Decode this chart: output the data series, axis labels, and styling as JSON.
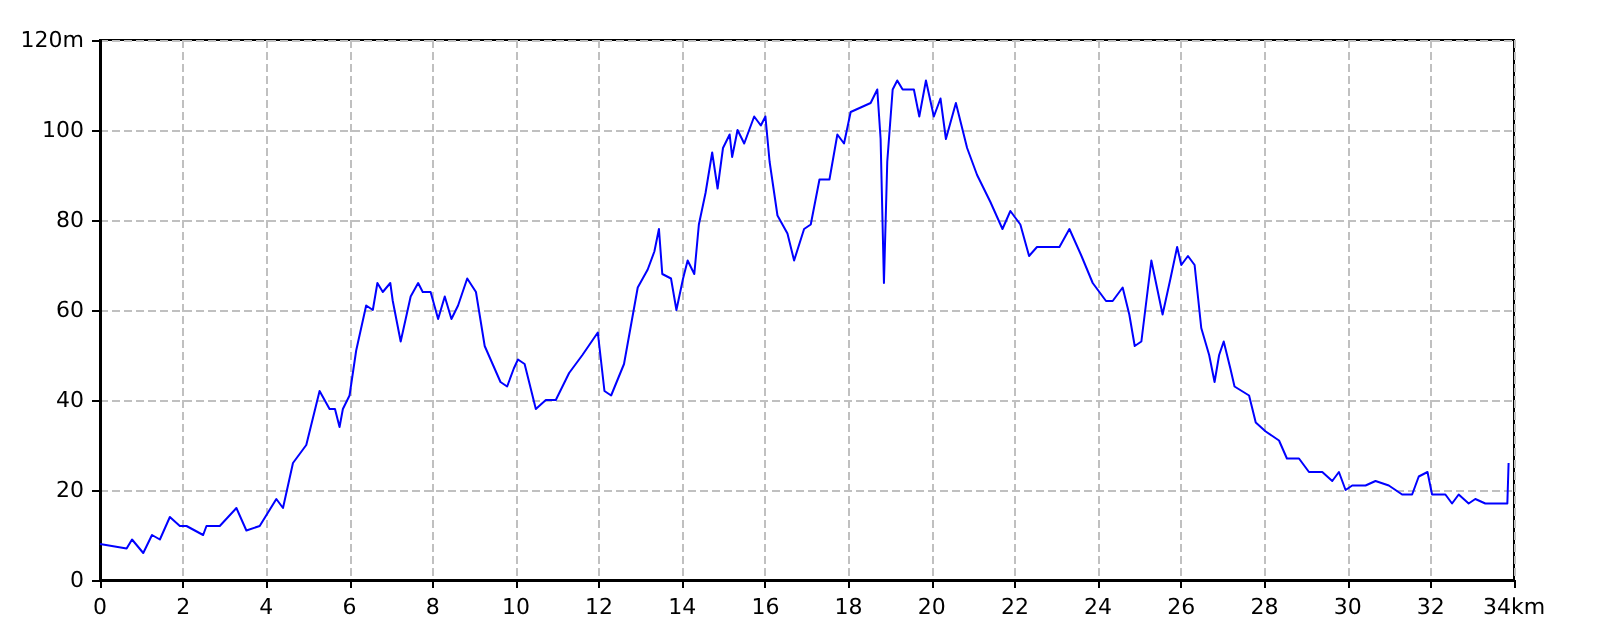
{
  "chart_data": {
    "type": "line",
    "x": [
      0,
      0.64,
      0.77,
      1.04,
      1.25,
      1.44,
      1.68,
      1.92,
      2.08,
      2.48,
      2.56,
      2.88,
      3.28,
      3.52,
      3.84,
      4.24,
      4.4,
      4.64,
      4.96,
      5.28,
      5.52,
      5.65,
      5.76,
      5.84,
      6.0,
      6.16,
      6.4,
      6.56,
      6.67,
      6.8,
      6.98,
      7.04,
      7.23,
      7.47,
      7.65,
      7.76,
      7.95,
      8.13,
      8.29,
      8.45,
      8.61,
      8.83,
      9.04,
      9.25,
      9.44,
      9.63,
      9.79,
      9.95,
      10.05,
      10.21,
      10.48,
      10.72,
      10.96,
      11.28,
      11.6,
      11.97,
      12.13,
      12.29,
      12.6,
      12.93,
      13.17,
      13.33,
      13.44,
      13.52,
      13.73,
      13.86,
      14.02,
      14.13,
      14.29,
      14.4,
      14.56,
      14.72,
      14.85,
      14.98,
      15.14,
      15.2,
      15.33,
      15.49,
      15.73,
      15.89,
      16.0,
      16.1,
      16.29,
      16.53,
      16.69,
      16.93,
      17.09,
      17.3,
      17.54,
      17.73,
      17.89,
      18.05,
      18.29,
      18.53,
      18.69,
      18.77,
      18.85,
      18.93,
      19.06,
      19.17,
      19.3,
      19.57,
      19.7,
      19.86,
      20.05,
      20.21,
      20.34,
      20.58,
      20.85,
      21.09,
      21.41,
      21.7,
      21.89,
      22.13,
      22.34,
      22.53,
      23.07,
      23.31,
      23.6,
      23.87,
      24.19,
      24.35,
      24.59,
      24.75,
      24.88,
      25.04,
      25.28,
      25.55,
      25.74,
      25.9,
      26.0,
      26.16,
      26.32,
      26.48,
      26.67,
      26.8,
      26.91,
      27.02,
      27.18,
      27.28,
      27.63,
      27.79,
      28.03,
      28.35,
      28.54,
      28.83,
      29.07,
      29.39,
      29.63,
      29.79,
      29.95,
      30.11,
      30.43,
      30.67,
      30.99,
      31.31,
      31.55,
      31.71,
      31.92,
      32.03,
      32.35,
      32.51,
      32.67,
      32.91,
      33.07,
      33.31,
      33.63,
      33.84,
      33.87
    ],
    "series": [
      {
        "color": "#0000ff",
        "values": [
          8,
          7,
          9,
          6,
          10,
          9,
          14,
          12,
          12,
          10,
          12,
          12,
          16,
          11,
          12,
          18,
          16,
          26,
          30,
          42,
          38,
          38,
          34,
          38,
          41,
          51,
          61,
          60,
          66,
          64,
          66,
          62,
          53,
          63,
          66,
          64,
          64,
          58,
          63,
          58,
          61,
          67,
          64,
          52,
          48,
          44,
          43,
          47,
          49,
          48,
          38,
          40,
          40,
          46,
          50,
          55,
          42,
          41,
          48,
          65,
          69,
          73,
          78,
          68,
          67,
          60,
          67,
          71,
          68,
          79,
          86,
          95,
          87,
          96,
          99,
          94,
          100,
          97,
          103,
          101,
          103,
          93,
          81,
          77,
          71,
          78,
          79,
          89,
          89,
          99,
          97,
          104,
          105,
          106,
          109,
          98,
          66,
          93,
          109,
          111,
          109,
          109,
          103,
          111,
          103,
          107,
          98,
          106,
          96,
          90,
          84,
          78,
          82,
          79,
          72,
          74,
          74,
          78,
          72,
          66,
          62,
          62,
          65,
          59,
          52,
          53,
          71,
          59,
          67,
          74,
          70,
          72,
          70,
          56,
          50,
          44,
          50,
          53,
          47,
          43,
          41,
          35,
          33,
          31,
          27,
          27,
          24,
          24,
          22,
          24,
          20,
          21,
          21,
          22,
          21,
          19,
          19,
          23,
          24,
          19,
          19,
          17,
          19,
          17,
          18,
          17,
          17,
          17,
          26
        ]
      }
    ],
    "xlim": [
      0,
      34
    ],
    "xticks": [
      0,
      2,
      4,
      6,
      8,
      10,
      12,
      14,
      16,
      18,
      20,
      22,
      24,
      26,
      28,
      30,
      32,
      {
        "value": 34,
        "label": "34km"
      }
    ],
    "ylim": [
      0,
      120
    ],
    "yticks": [
      0,
      20,
      40,
      60,
      80,
      100,
      {
        "value": 120,
        "label": "120m"
      }
    ],
    "grid": true,
    "line_style": "solid",
    "marker": "none"
  }
}
